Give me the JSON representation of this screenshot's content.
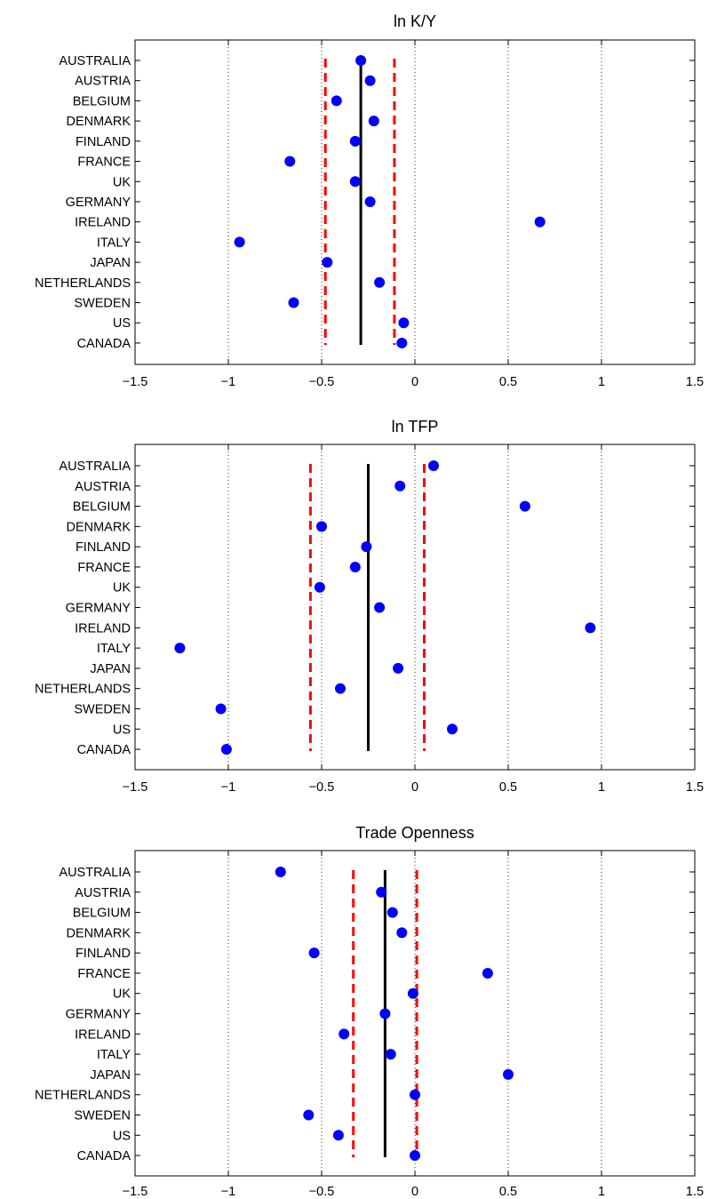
{
  "chart_data": [
    {
      "type": "scatter",
      "title": "ln K/Y",
      "xlabel": "",
      "ylabel": "",
      "xlim": [
        -1.5,
        1.5
      ],
      "xticks": [
        "−1.5",
        "−1",
        "−0.5",
        "0",
        "0.5",
        "1",
        "1.5"
      ],
      "xtick_values": [
        -1.5,
        -1,
        -0.5,
        0,
        0.5,
        1,
        1.5
      ],
      "grid": "vertical dotted at ticks",
      "categories": [
        "AUSTRALIA",
        "AUSTRIA",
        "BELGIUM",
        "DENMARK",
        "FINLAND",
        "FRANCE",
        "UK",
        "GERMANY",
        "IRELAND",
        "ITALY",
        "JAPAN",
        "NETHERLANDS",
        "SWEDEN",
        "US",
        "CANADA"
      ],
      "values": [
        -0.29,
        -0.24,
        -0.42,
        -0.22,
        -0.32,
        -0.67,
        -0.32,
        -0.24,
        0.67,
        -0.94,
        -0.47,
        -0.19,
        -0.65,
        -0.06,
        -0.07
      ],
      "center_line": -0.29,
      "band": [
        -0.48,
        -0.11
      ],
      "colors": {
        "points": "#0000ff",
        "center_line": "#000000",
        "band": "#ff0000"
      }
    },
    {
      "type": "scatter",
      "title": "ln TFP",
      "xlabel": "",
      "ylabel": "",
      "xlim": [
        -1.5,
        1.5
      ],
      "xticks": [
        "−1.5",
        "−1",
        "−0.5",
        "0",
        "0.5",
        "1",
        "1.5"
      ],
      "xtick_values": [
        -1.5,
        -1,
        -0.5,
        0,
        0.5,
        1,
        1.5
      ],
      "grid": "vertical dotted at ticks",
      "categories": [
        "AUSTRALIA",
        "AUSTRIA",
        "BELGIUM",
        "DENMARK",
        "FINLAND",
        "FRANCE",
        "UK",
        "GERMANY",
        "IRELAND",
        "ITALY",
        "JAPAN",
        "NETHERLANDS",
        "SWEDEN",
        "US",
        "CANADA"
      ],
      "values": [
        0.1,
        -0.08,
        0.59,
        -0.5,
        -0.26,
        -0.32,
        -0.51,
        -0.19,
        0.94,
        -1.26,
        -0.09,
        -0.4,
        -1.04,
        0.2,
        -1.01
      ],
      "center_line": -0.25,
      "band": [
        -0.56,
        0.05
      ],
      "colors": {
        "points": "#0000ff",
        "center_line": "#000000",
        "band": "#ff0000"
      }
    },
    {
      "type": "scatter",
      "title": "Trade Openness",
      "xlabel": "",
      "ylabel": "",
      "xlim": [
        -1.5,
        1.5
      ],
      "xticks": [
        "−1.5",
        "−1",
        "−0.5",
        "0",
        "0.5",
        "1",
        "1.5"
      ],
      "xtick_values": [
        -1.5,
        -1,
        -0.5,
        0,
        0.5,
        1,
        1.5
      ],
      "grid": "vertical dotted at ticks",
      "categories": [
        "AUSTRALIA",
        "AUSTRIA",
        "BELGIUM",
        "DENMARK",
        "FINLAND",
        "FRANCE",
        "UK",
        "GERMANY",
        "IRELAND",
        "ITALY",
        "JAPAN",
        "NETHERLANDS",
        "SWEDEN",
        "US",
        "CANADA"
      ],
      "values": [
        -0.72,
        -0.18,
        -0.12,
        -0.07,
        -0.54,
        0.39,
        -0.01,
        -0.16,
        -0.38,
        -0.13,
        0.5,
        0.0,
        -0.57,
        -0.41,
        0.0
      ],
      "center_line": -0.16,
      "band": [
        -0.33,
        0.01
      ],
      "colors": {
        "points": "#0000ff",
        "center_line": "#000000",
        "band": "#ff0000"
      }
    }
  ]
}
